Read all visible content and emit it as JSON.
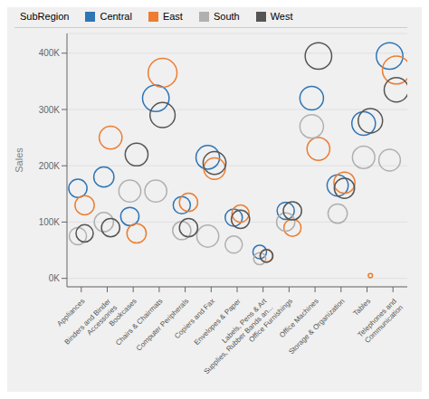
{
  "chart_data": {
    "type": "scatter",
    "ylabel": "Sales",
    "legend_title": "SubRegion",
    "legend": "top",
    "grid": true,
    "categories": [
      "Appliances",
      "Binders and Binder\nAccessories",
      "Bookcases",
      "Chairs & Chairmats",
      "Computer Peripherals",
      "Copiers and Fax",
      "Envelopes & Paper",
      "Labels, Pens & Art\nSupplies, Rubber Bands an...",
      "Office Furnishings",
      "Office Machines",
      "Storage & Organization",
      "Tables",
      "Telephones and\nCommunication"
    ],
    "series": [
      {
        "name": "Central",
        "color": "#2e75b6",
        "values": [
          160000,
          180000,
          110000,
          320000,
          130000,
          215000,
          108000,
          47000,
          120000,
          320000,
          165000,
          275000,
          395000
        ],
        "sizes": [
          180,
          220,
          180,
          380,
          160,
          300,
          160,
          100,
          160,
          300,
          240,
          300,
          380
        ]
      },
      {
        "name": "East",
        "color": "#ed7d31",
        "values": [
          130000,
          250000,
          80000,
          365000,
          135000,
          195000,
          115000,
          40000,
          90000,
          230000,
          170000,
          5000,
          370000
        ],
        "sizes": [
          200,
          280,
          200,
          450,
          180,
          250,
          160,
          80,
          160,
          280,
          240,
          10,
          420
        ]
      },
      {
        "name": "South",
        "color": "#b0b0b0",
        "values": [
          75000,
          100000,
          155000,
          155000,
          85000,
          75000,
          60000,
          35000,
          100000,
          270000,
          115000,
          215000,
          210000
        ],
        "sizes": [
          160,
          200,
          260,
          260,
          180,
          260,
          160,
          80,
          180,
          300,
          200,
          270,
          250
        ]
      },
      {
        "name": "West",
        "color": "#555555",
        "values": [
          80000,
          90000,
          220000,
          290000,
          90000,
          205000,
          105000,
          40000,
          120000,
          395000,
          160000,
          280000,
          335000
        ],
        "sizes": [
          160,
          180,
          280,
          340,
          180,
          280,
          180,
          90,
          180,
          380,
          220,
          320,
          320
        ]
      }
    ],
    "ylim": [
      -15000,
      435000
    ],
    "yticks": [
      {
        "value": 0,
        "label": "0K"
      },
      {
        "value": 100000,
        "label": "100K"
      },
      {
        "value": 200000,
        "label": "200K"
      },
      {
        "value": 300000,
        "label": "300K"
      },
      {
        "value": 400000,
        "label": "400K"
      }
    ]
  }
}
